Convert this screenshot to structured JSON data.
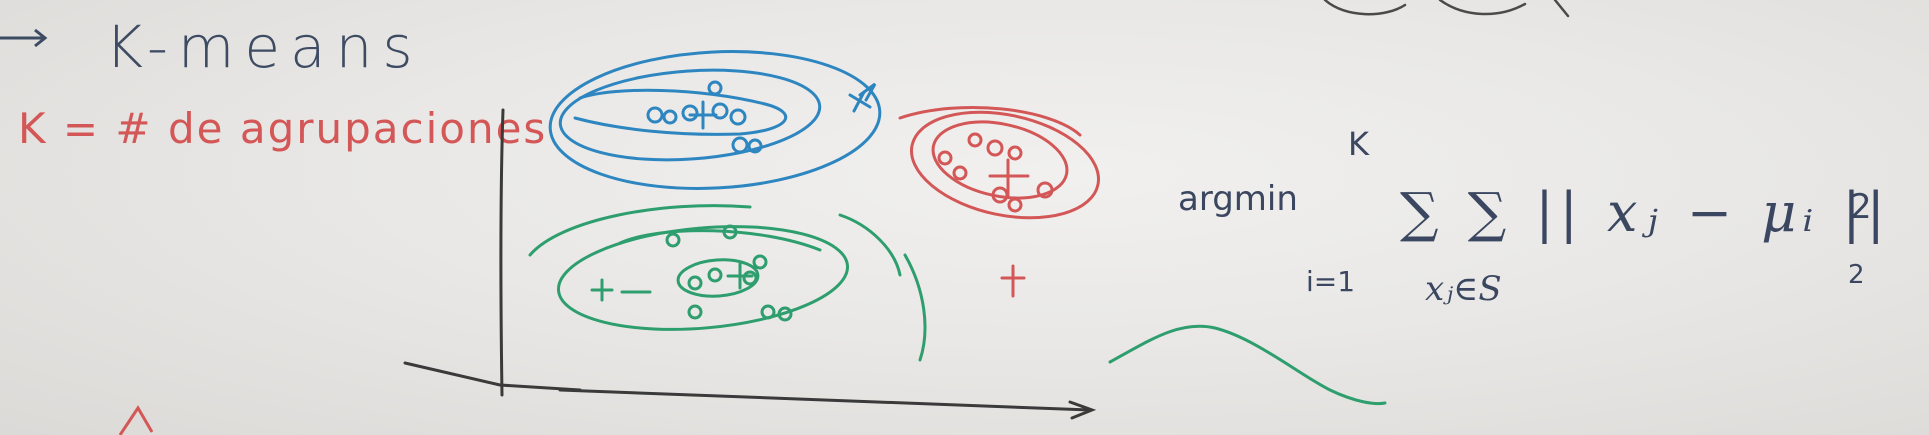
{
  "board": {
    "title": "K-means",
    "definition": "K = # de agrupaciones",
    "formula": {
      "operator": "argmin",
      "sum_upper": "K",
      "sum_lower_outer": "i=1",
      "sum_lower_inner": "xⱼ∈S",
      "term": "∑ ∑ || xⱼ − μᵢ ||",
      "exponent": "2",
      "subscript": "2"
    }
  },
  "colors": {
    "board": "#e8e7e5",
    "ink_dark": "#3b4760",
    "ink_red": "#d45757",
    "ink_blue": "#2e86c1",
    "ink_green": "#2e9e6e"
  },
  "icons": {
    "axes": "axes-icon",
    "blue_cluster": "blue-cluster-icon",
    "green_cluster": "green-cluster-icon",
    "red_cluster": "red-cluster-icon",
    "green_wave": "wave-icon"
  }
}
